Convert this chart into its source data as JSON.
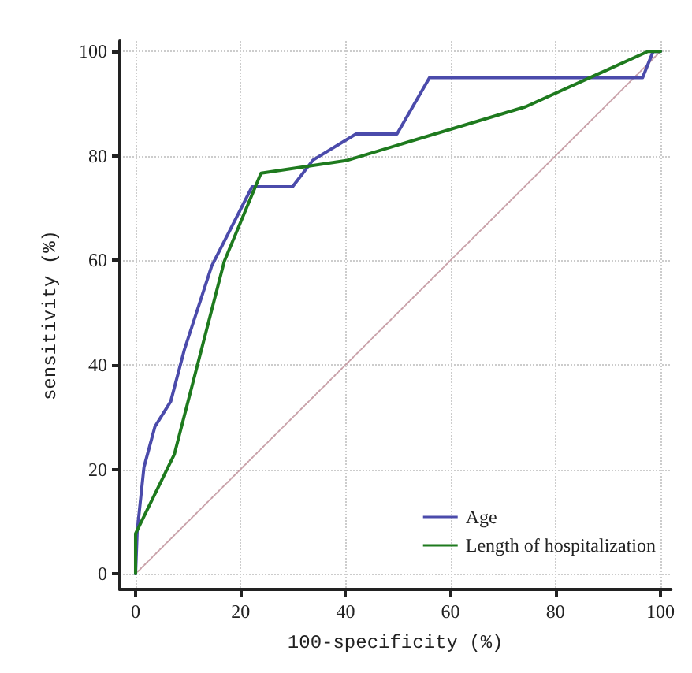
{
  "chart_data": {
    "type": "line",
    "xlabel": "100-specificity (%)",
    "ylabel": "sensitivity (%)",
    "xlim": [
      -3,
      102
    ],
    "ylim": [
      -3,
      102
    ],
    "xticks": [
      0,
      20,
      40,
      60,
      80,
      100
    ],
    "yticks": [
      0,
      20,
      40,
      60,
      80,
      100
    ],
    "grid": true,
    "legend": "bottom right",
    "marker": "none",
    "series": [
      {
        "name": "Age",
        "color": "#4b4bab",
        "x": [
          0,
          0.3,
          1.6,
          3.7,
          6.7,
          9.3,
          14.5,
          22.2,
          29.9,
          33.8,
          42,
          49.8,
          56,
          96.6,
          98.6,
          100
        ],
        "values": [
          0,
          8,
          20.4,
          28.2,
          33,
          42.9,
          58.9,
          74.1,
          74.1,
          79.2,
          84.2,
          84.2,
          95,
          95,
          100,
          100
        ]
      },
      {
        "name": "Length of hospitalization",
        "color": "#1e7a1e",
        "x": [
          0,
          0,
          7.4,
          16.9,
          23.9,
          40.1,
          74.3,
          97.6,
          100
        ],
        "values": [
          0,
          7.7,
          22.9,
          59.8,
          76.7,
          79.1,
          89.4,
          100,
          100
        ]
      },
      {
        "color": "#c8a0a8",
        "line_style": "dotted",
        "x": [
          0,
          100
        ],
        "values": [
          0,
          100
        ]
      }
    ]
  }
}
